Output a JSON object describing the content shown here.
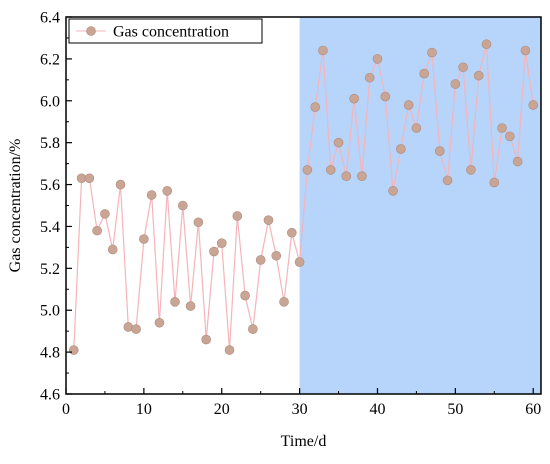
{
  "chart_data": {
    "type": "line",
    "title": "",
    "xlabel": "Time/d",
    "ylabel": "Gas concentration/%",
    "xlim": [
      0,
      61
    ],
    "ylim": [
      4.6,
      6.4
    ],
    "x_ticks": [
      "0",
      "10",
      "20",
      "30",
      "40",
      "50",
      "60"
    ],
    "y_ticks": [
      "4.6",
      "4.8",
      "5.0",
      "5.2",
      "5.4",
      "5.6",
      "5.8",
      "6.0",
      "6.2",
      "6.4"
    ],
    "grid": false,
    "legend_position": "top-left",
    "shaded_region": {
      "x_from": 30,
      "x_to": 61,
      "color": "#b7d4fb"
    },
    "series": [
      {
        "name": "Gas concentration",
        "line_color": "#f4b4ba",
        "marker_color": "#c9a595",
        "x": [
          1,
          2,
          3,
          4,
          5,
          6,
          7,
          8,
          9,
          10,
          11,
          12,
          13,
          14,
          15,
          16,
          17,
          18,
          19,
          20,
          21,
          22,
          23,
          24,
          25,
          26,
          27,
          28,
          29,
          30,
          31,
          32,
          33,
          34,
          35,
          36,
          37,
          38,
          39,
          40,
          41,
          42,
          43,
          44,
          45,
          46,
          47,
          48,
          49,
          50,
          51,
          52,
          53,
          54,
          55,
          56,
          57,
          58,
          59,
          60
        ],
        "y": [
          4.81,
          5.63,
          5.63,
          5.38,
          5.46,
          5.29,
          5.6,
          4.92,
          4.91,
          5.34,
          5.55,
          4.94,
          5.57,
          5.04,
          5.5,
          5.02,
          5.42,
          4.86,
          5.28,
          5.32,
          4.81,
          5.45,
          5.07,
          4.91,
          5.24,
          5.43,
          5.26,
          5.04,
          5.37,
          5.23,
          5.67,
          5.97,
          6.24,
          5.67,
          5.8,
          5.64,
          6.01,
          5.64,
          6.11,
          6.2,
          6.02,
          5.57,
          5.77,
          5.98,
          5.87,
          6.13,
          6.23,
          5.76,
          5.62,
          6.08,
          6.16,
          5.67,
          6.12,
          6.27,
          5.61,
          5.87,
          5.83,
          5.71,
          6.24,
          5.98
        ]
      }
    ]
  }
}
